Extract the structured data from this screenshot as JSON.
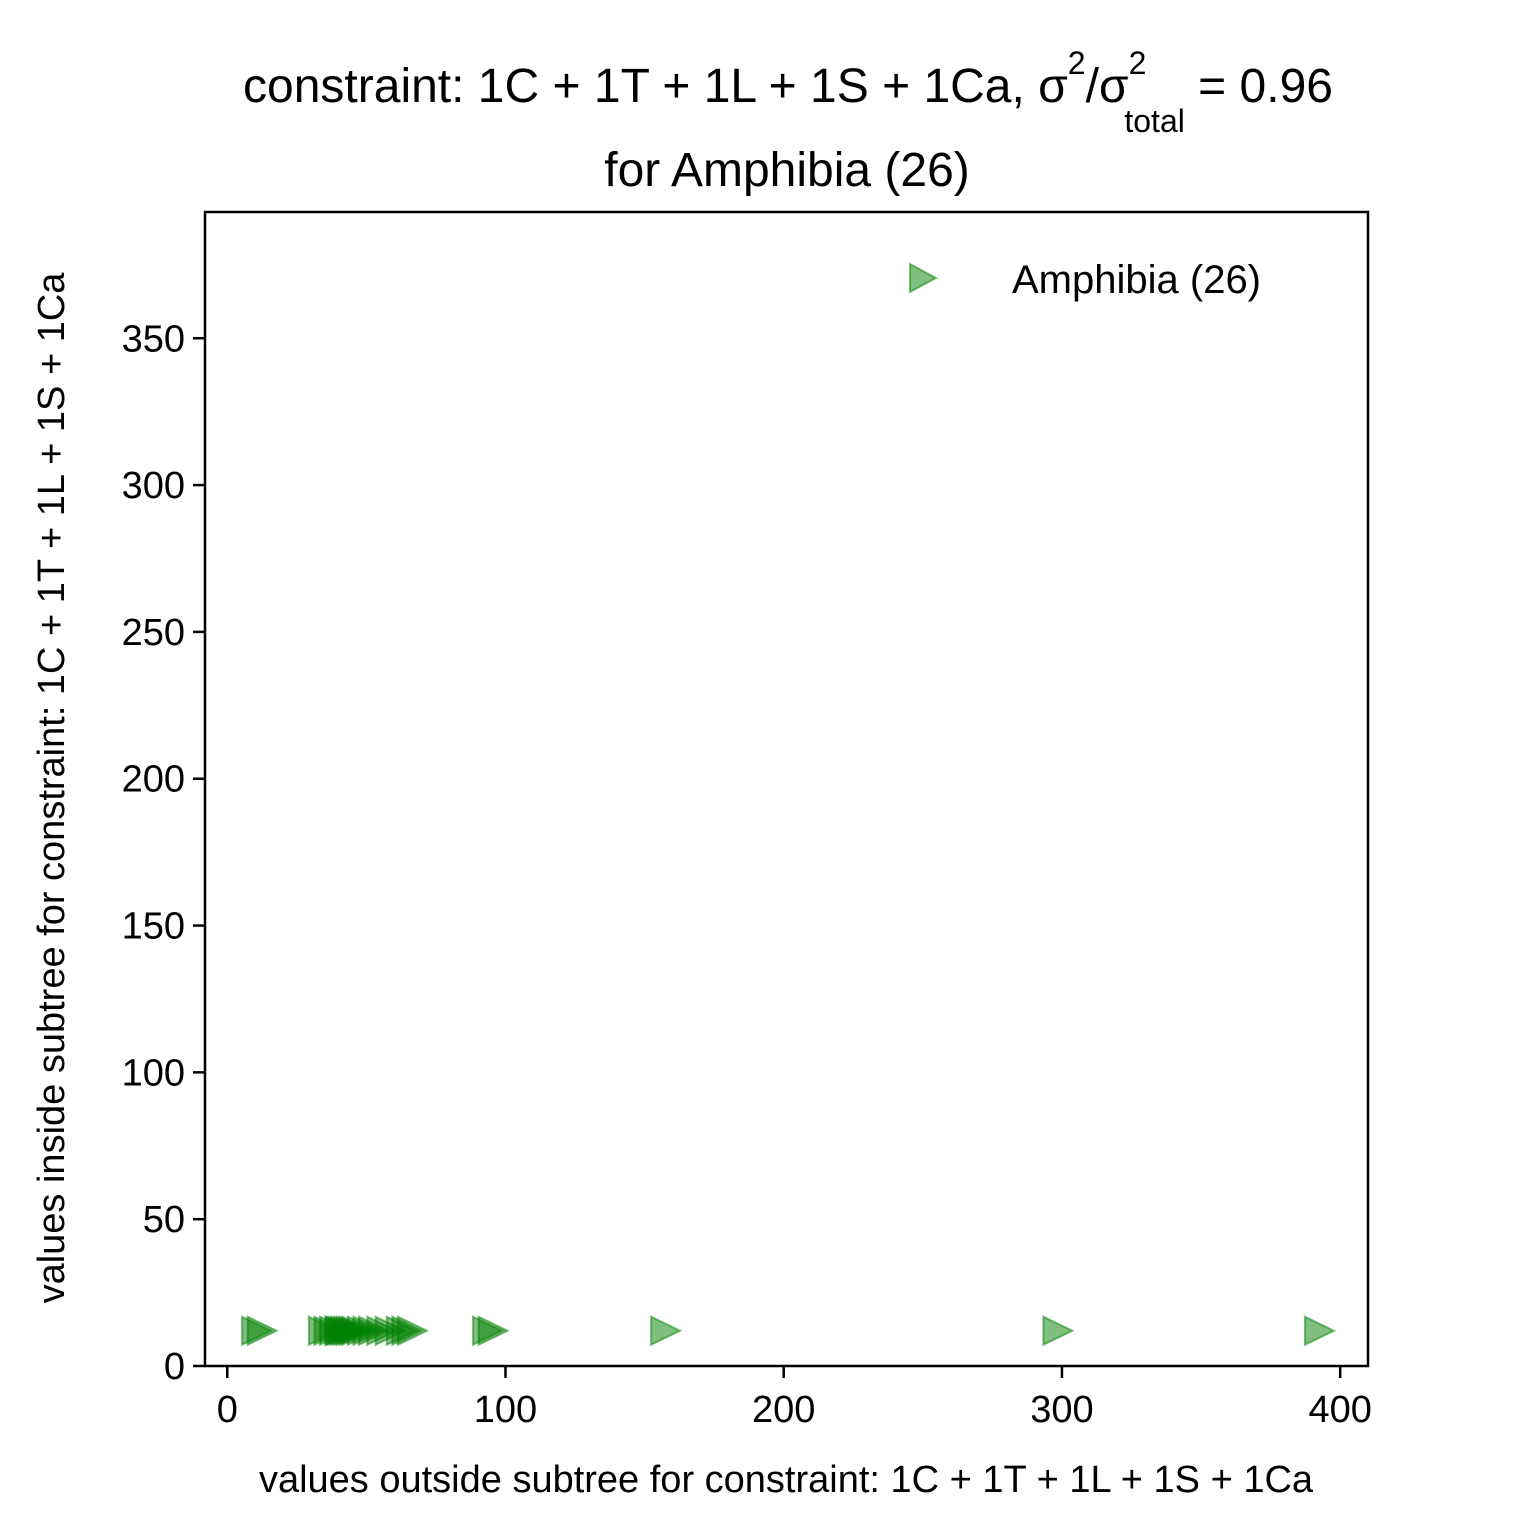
{
  "chart_data": {
    "type": "scatter",
    "title": {
      "prefix": "constraint: 1C + 1T + 1L + 1S + 1Ca, σ",
      "sup1": "2",
      "mid": "/σ",
      "sup2": "2",
      "sub": "total",
      "suffix": " =  0.96",
      "line2": "for Amphibia (26)"
    },
    "xlabel": "values outside subtree for constraint: 1C + 1T + 1L + 1S + 1Ca",
    "ylabel": "values inside subtree for constraint: 1C + 1T + 1L + 1S + 1Ca",
    "xlim": [
      -8,
      410
    ],
    "ylim": [
      0,
      393
    ],
    "xticks": [
      0,
      100,
      200,
      300,
      400
    ],
    "yticks": [
      0,
      50,
      100,
      150,
      200,
      250,
      300,
      350
    ],
    "grid": false,
    "legend_position": "top-right",
    "series": [
      {
        "name": "Amphibia (26)",
        "marker": "triangle-right",
        "color": "#008000",
        "alpha": 0.5,
        "points": [
          [
            10,
            12
          ],
          [
            12,
            12
          ],
          [
            34,
            12
          ],
          [
            36,
            12
          ],
          [
            38,
            12
          ],
          [
            40,
            12
          ],
          [
            41,
            12
          ],
          [
            42,
            12
          ],
          [
            43,
            12
          ],
          [
            44,
            12
          ],
          [
            45,
            12
          ],
          [
            46,
            12
          ],
          [
            48,
            12
          ],
          [
            50,
            12
          ],
          [
            52,
            12
          ],
          [
            55,
            12
          ],
          [
            58,
            12
          ],
          [
            62,
            12
          ],
          [
            64,
            12
          ],
          [
            66,
            12
          ],
          [
            93,
            12
          ],
          [
            95,
            12
          ],
          [
            157,
            12
          ],
          [
            298,
            12
          ],
          [
            392,
            12
          ],
          [
            40,
            12
          ]
        ]
      }
    ]
  }
}
